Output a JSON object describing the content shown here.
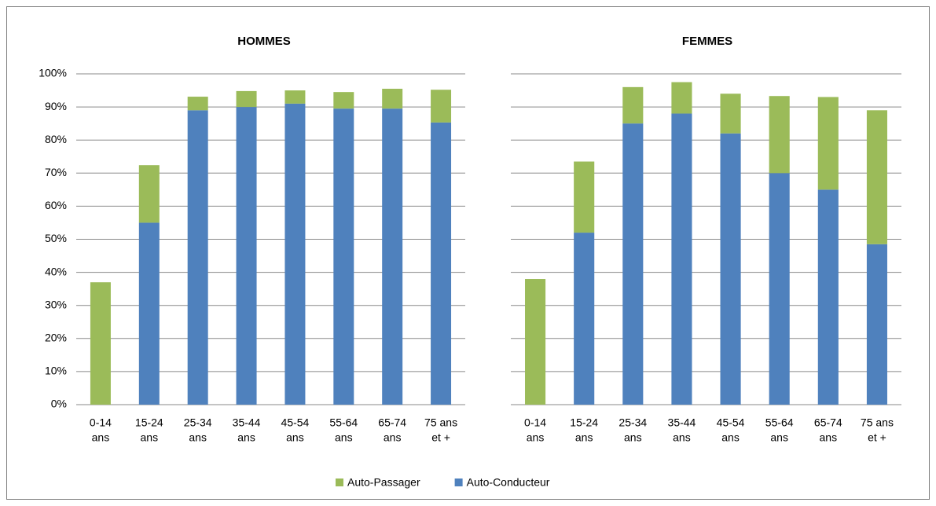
{
  "chart_data": [
    {
      "type": "stacked-bar",
      "title": "HOMMES",
      "categories": [
        [
          "0-14",
          "ans"
        ],
        [
          "15-24",
          "ans"
        ],
        [
          "25-34",
          "ans"
        ],
        [
          "35-44",
          "ans"
        ],
        [
          "45-54",
          "ans"
        ],
        [
          "55-64",
          "ans"
        ],
        [
          "65-74",
          "ans"
        ],
        [
          "75 ans",
          "et +"
        ]
      ],
      "series": [
        {
          "name": "Auto-Conducteur",
          "color": "#4f81bd",
          "values": [
            0,
            55,
            89,
            90,
            91,
            89.5,
            89.5,
            85.3
          ]
        },
        {
          "name": "Auto-Passager",
          "color": "#9bbb59",
          "values": [
            37,
            17.4,
            4.1,
            4.8,
            4,
            5,
            6,
            9.9
          ]
        }
      ],
      "ylim": [
        0,
        100
      ],
      "yticks": [
        {
          "value": 0,
          "label": "0%"
        },
        {
          "value": 10,
          "label": "10%"
        },
        {
          "value": 20,
          "label": "20%"
        },
        {
          "value": 30,
          "label": "30%"
        },
        {
          "value": 40,
          "label": "40%"
        },
        {
          "value": 50,
          "label": "50%"
        },
        {
          "value": 60,
          "label": "60%"
        },
        {
          "value": 70,
          "label": "70%"
        },
        {
          "value": 80,
          "label": "80%"
        },
        {
          "value": 90,
          "label": "90%"
        },
        {
          "value": 100,
          "label": "100%"
        }
      ],
      "grid": true
    },
    {
      "type": "stacked-bar",
      "title": "FEMMES",
      "categories": [
        [
          "0-14",
          "ans"
        ],
        [
          "15-24",
          "ans"
        ],
        [
          "25-34",
          "ans"
        ],
        [
          "35-44",
          "ans"
        ],
        [
          "45-54",
          "ans"
        ],
        [
          "55-64",
          "ans"
        ],
        [
          "65-74",
          "ans"
        ],
        [
          "75 ans",
          "et +"
        ]
      ],
      "series": [
        {
          "name": "Auto-Conducteur",
          "color": "#4f81bd",
          "values": [
            0,
            52,
            85,
            88,
            82,
            70,
            65,
            48.5
          ]
        },
        {
          "name": "Auto-Passager",
          "color": "#9bbb59",
          "values": [
            38,
            21.5,
            11,
            9.5,
            12,
            23.3,
            28,
            40.5
          ]
        }
      ],
      "ylim": [
        0,
        100
      ],
      "yticks": [
        0,
        10,
        20,
        30,
        40,
        50,
        60,
        70,
        80,
        90,
        100
      ],
      "grid": true
    }
  ]
}
